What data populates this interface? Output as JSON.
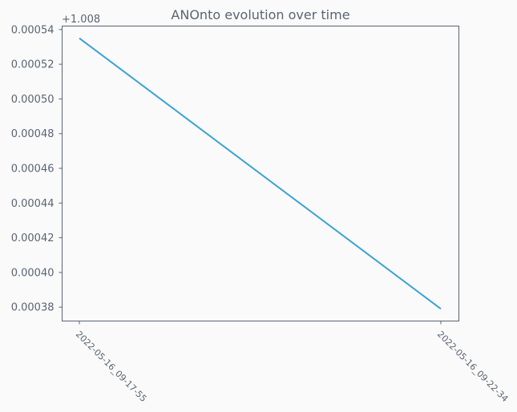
{
  "chart_data": {
    "type": "line",
    "title": "ANOnto evolution over time",
    "xlabel": "",
    "ylabel": "",
    "y_offset_label": "+1.008",
    "categories": [
      "2022-05-16_09-17-55",
      "2022-05-16_09-22-34"
    ],
    "series": [
      {
        "values": [
          0.000535,
          0.000379
        ]
      }
    ],
    "ylim": [
      0.000372,
      0.000542
    ],
    "yticks": [
      0.00038,
      0.0004,
      0.00042,
      0.00044,
      0.00046,
      0.00048,
      0.0005,
      0.00052,
      0.00054
    ],
    "ytick_labels": [
      "0.00038",
      "0.00040",
      "0.00042",
      "0.00044",
      "0.00046",
      "0.00048",
      "0.00050",
      "0.00052",
      "0.00054"
    ],
    "grid": false,
    "colors": {
      "line": "#3aa3d4",
      "axis": "#5a6473",
      "text": "#5a6473",
      "background": "#fafafa"
    }
  }
}
